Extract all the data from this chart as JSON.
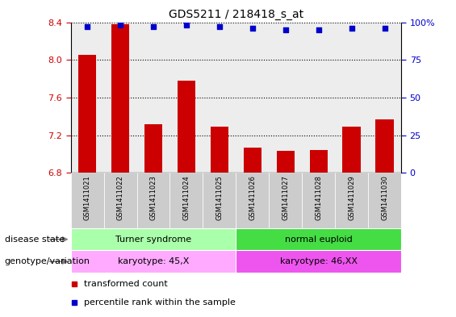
{
  "title": "GDS5211 / 218418_s_at",
  "samples": [
    "GSM1411021",
    "GSM1411022",
    "GSM1411023",
    "GSM1411024",
    "GSM1411025",
    "GSM1411026",
    "GSM1411027",
    "GSM1411028",
    "GSM1411029",
    "GSM1411030"
  ],
  "transformed_count": [
    8.05,
    8.38,
    7.32,
    7.78,
    7.29,
    7.07,
    7.03,
    7.04,
    7.29,
    7.37
  ],
  "percentile_rank": [
    97,
    98,
    97,
    98,
    97,
    96,
    95,
    95,
    96,
    96
  ],
  "ylim": [
    6.8,
    8.4
  ],
  "yticks": [
    6.8,
    7.2,
    7.6,
    8.0,
    8.4
  ],
  "right_ytick_vals": [
    0,
    25,
    50,
    75,
    100
  ],
  "right_ytick_labels": [
    "0",
    "25",
    "50",
    "75",
    "100%"
  ],
  "bar_color": "#cc0000",
  "dot_color": "#0000cc",
  "disease_state_groups": [
    {
      "label": "Turner syndrome",
      "start": 0,
      "end": 5,
      "color": "#aaffaa"
    },
    {
      "label": "normal euploid",
      "start": 5,
      "end": 10,
      "color": "#44dd44"
    }
  ],
  "genotype_groups": [
    {
      "label": "karyotype: 45,X",
      "start": 0,
      "end": 5,
      "color": "#ffaaff"
    },
    {
      "label": "karyotype: 46,XX",
      "start": 5,
      "end": 10,
      "color": "#ee55ee"
    }
  ],
  "disease_state_label": "disease state",
  "genotype_label": "genotype/variation",
  "legend_items": [
    {
      "label": "transformed count",
      "color": "#cc0000"
    },
    {
      "label": "percentile rank within the sample",
      "color": "#0000cc"
    }
  ],
  "tick_label_color": "#cc0000",
  "right_tick_color": "#0000cc",
  "col_bg_color": "#cccccc",
  "col_bg_alpha": 0.35
}
